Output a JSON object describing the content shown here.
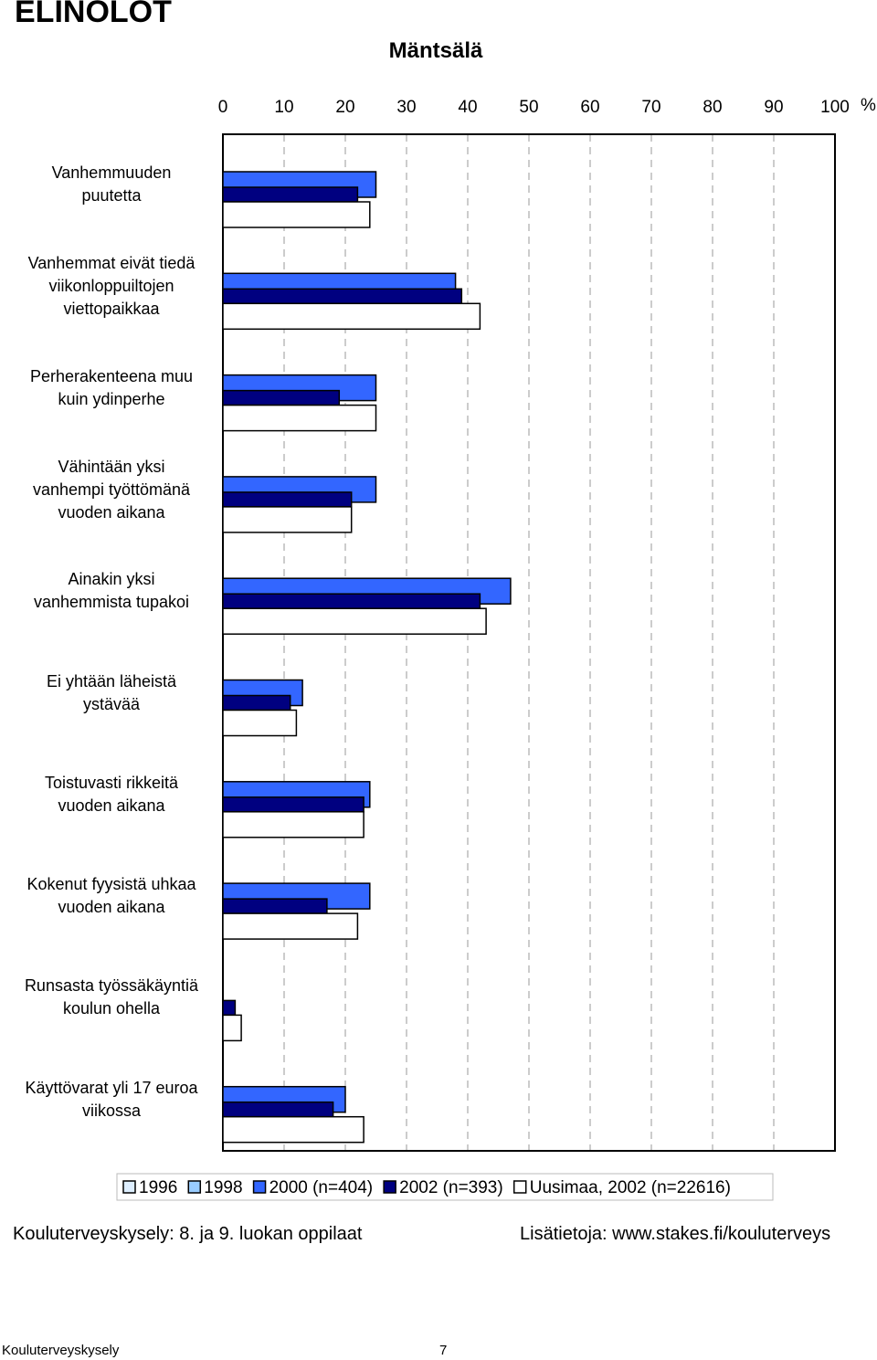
{
  "chart_data": {
    "type": "hbar",
    "header": "ELINOLOT",
    "title": "Mäntsälä",
    "x_unit": "%",
    "categories": [
      "Vanhemmuuden\npuutetta",
      "Vanhemmat eivät tiedä\nviikonloppuiltojen\nviettopaikkaa",
      "Perherakenteena muu\nkuin ydinperhe",
      "Vähintään yksi\nvanhempi työttömänä\nvuoden aikana",
      "Ainakin yksi\nvanhemmista tupakoi",
      "Ei yhtään läheistä\nystävää",
      "Toistuvasti rikkeitä\nvuoden aikana",
      "Kokenut fyysistä uhkaa\nvuoden aikana",
      "Runsasta työssäkäyntiä\nkoulun ohella",
      "Käyttövarat yli 17 euroa\nviikossa"
    ],
    "series": [
      {
        "name": "1996",
        "color": "#ddeeff",
        "values": [
          null,
          null,
          null,
          null,
          null,
          null,
          null,
          null,
          null,
          null
        ]
      },
      {
        "name": "1998",
        "color": "#99ccff",
        "values": [
          null,
          null,
          null,
          null,
          null,
          null,
          null,
          null,
          null,
          null
        ]
      },
      {
        "name": "2000 (n=404)",
        "color": "#3366ff",
        "values": [
          25,
          38,
          25,
          25,
          47,
          13,
          24,
          24,
          null,
          20
        ]
      },
      {
        "name": "2002 (n=393)",
        "color": "#000080",
        "values": [
          22,
          39,
          19,
          21,
          42,
          11,
          23,
          17,
          2,
          18
        ]
      },
      {
        "name": "Uusimaa, 2002 (n=22616)",
        "color": "#ffffff",
        "values": [
          24,
          42,
          25,
          21,
          43,
          12,
          23,
          22,
          3,
          23
        ]
      }
    ],
    "xlim": [
      0,
      100
    ],
    "xticks": [
      0,
      10,
      20,
      30,
      40,
      50,
      60,
      70,
      80,
      90,
      100
    ],
    "grid": true,
    "footer_left": "Kouluterveyskysely: 8. ja 9. luokan oppilaat",
    "footer_right": "Lisätietoja: www.stakes.fi/kouluterveys",
    "page_footer": "Kouluterveyskysely",
    "page_number": "7"
  }
}
